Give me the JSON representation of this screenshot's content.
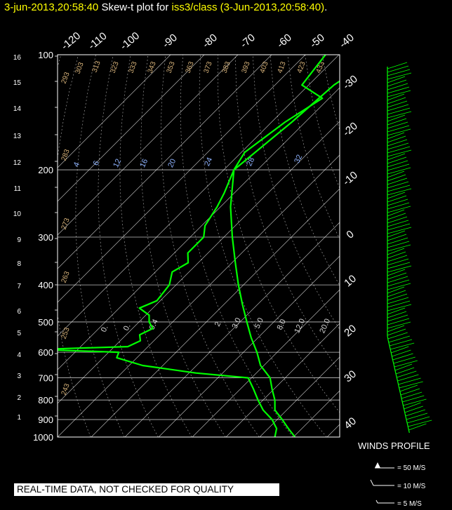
{
  "header": {
    "timestamp": "3-jun-2013,20:58:40",
    "prefix": "Skew-t plot for",
    "station": "iss3/class (3-Jun-2013,20:58:40)",
    "suffix": "."
  },
  "quality_banner": "REAL-TIME DATA, NOT CHECKED FOR QUALITY",
  "winds_profile": {
    "title": "WINDS PROFILE",
    "legend": [
      "= 50 M/S",
      "= 10 M/S",
      "= 5 M/S"
    ]
  },
  "colors": {
    "profile": "#00ff00",
    "header_accent": "#ffff00",
    "grid": "#ffffff",
    "adiabat": "#d8b37a",
    "mixing": "#8fb3ff"
  },
  "chart_data": {
    "type": "line",
    "title": "Skew-t plot for iss3/class (3-Jun-2013,20:58:40).",
    "pressure_ticks": [
      "100",
      "200",
      "300",
      "400",
      "500",
      "600",
      "700",
      "800",
      "900",
      "1000"
    ],
    "height_ticks": [
      "1",
      "2",
      "3",
      "4",
      "5",
      "6",
      "7",
      "8",
      "9",
      "10",
      "11",
      "12",
      "13",
      "14",
      "15",
      "16"
    ],
    "temp_ticks": [
      "-120",
      "-110",
      "-100",
      "-90",
      "-80",
      "-70",
      "-60",
      "-50",
      "-40",
      "-30",
      "-20",
      "-10",
      "0",
      "10",
      "20",
      "30",
      "40"
    ],
    "theta_labels": [
      "293",
      "303",
      "313",
      "323",
      "333",
      "343",
      "353",
      "363",
      "373",
      "383",
      "393",
      "403",
      "413",
      "423",
      "433",
      "283",
      "273",
      "263",
      "253",
      "243"
    ],
    "mixing_labels": [
      "4",
      "6",
      "12",
      "16",
      "20",
      "24",
      "28",
      "32"
    ],
    "lower_mixing_labels": [
      "0.",
      "0.",
      "0.4",
      "2.",
      "3.0",
      "5.0",
      "8.0",
      "12.0",
      "20.0"
    ],
    "temperature": {
      "name": "Temperature",
      "pressure": [
        1000,
        950,
        900,
        850,
        800,
        750,
        700,
        650,
        600,
        550,
        500,
        450,
        400,
        350,
        300,
        250,
        200,
        150,
        120,
        100
      ],
      "values": [
        30.5,
        26.0,
        21.5,
        16.5,
        13.5,
        9.5,
        5.5,
        -1.0,
        -6.0,
        -12.0,
        -18.0,
        -24.5,
        -31.5,
        -39.0,
        -47.5,
        -57.0,
        -67.0,
        -64.0,
        -62.5,
        -58.0
      ]
    },
    "dewpoint": {
      "name": "Dewpoint",
      "pressure": [
        1000,
        950,
        900,
        850,
        800,
        750,
        700,
        680,
        650,
        620,
        600,
        590,
        580,
        560,
        540,
        520,
        500,
        480,
        460,
        440,
        400,
        370,
        350,
        330,
        300,
        280,
        250,
        230,
        200,
        180,
        150,
        130,
        120,
        100
      ],
      "values": [
        24.5,
        22.5,
        18.5,
        13.0,
        8.5,
        4.0,
        -1.0,
        -18.0,
        -36.0,
        -46.0,
        -47.0,
        -72.0,
        -46.0,
        -44.0,
        -46.0,
        -44.0,
        -47.0,
        -49.0,
        -54.0,
        -51.0,
        -52.0,
        -55.0,
        -53.0,
        -56.0,
        -56.0,
        -59.0,
        -61.0,
        -63.0,
        -67.0,
        -69.0,
        -66.0,
        -62.0,
        -72.0,
        -74.0
      ]
    },
    "axes": {
      "pressure_range": [
        1000,
        100
      ],
      "temp_range_at_base": [
        -40,
        45
      ],
      "pressure_scale": "log",
      "skew": "45deg"
    },
    "grid": true
  }
}
